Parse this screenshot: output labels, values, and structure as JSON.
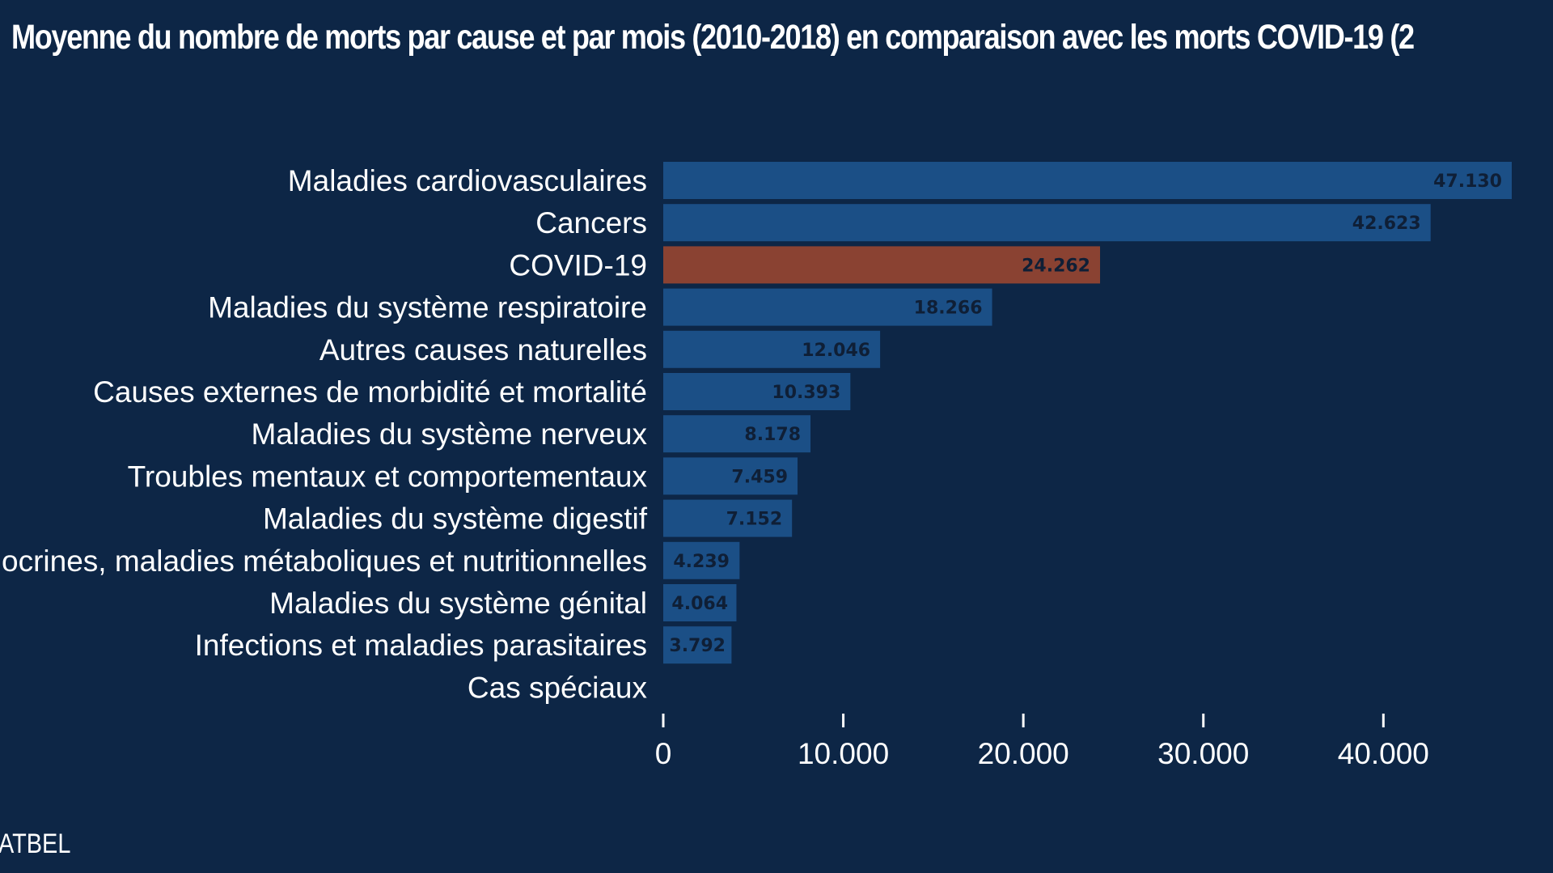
{
  "chart_data": {
    "type": "bar",
    "orientation": "horizontal",
    "title": "Moyenne du nombre de morts par cause et par mois (2010-2018) en comparaison avec les morts COVID-19 (2",
    "source": "ATBEL",
    "categories": [
      "Maladies cardiovasculaires",
      "Cancers",
      "COVID-19",
      "Maladies du système respiratoire",
      "Autres causes naturelles",
      "Causes externes de morbidité et mortalité",
      "Maladies du système nerveux",
      "Troubles mentaux et comportementaux",
      "Maladies du système digestif",
      "Endocrines, maladies métaboliques et nutritionnelles",
      "Maladies du système génital",
      "Infections et maladies parasitaires",
      "Cas spéciaux"
    ],
    "values": [
      47130,
      42623,
      24262,
      18266,
      12046,
      10393,
      8178,
      7459,
      7152,
      4239,
      4064,
      3792,
      null
    ],
    "value_labels": [
      "47.130",
      "42.623",
      "24.262",
      "18.266",
      "12.046",
      "10.393",
      "8.178",
      "7.459",
      "7.152",
      "4.239",
      "4.064",
      "3.792",
      ""
    ],
    "highlight_category": "COVID-19",
    "xlim": [
      0,
      47130
    ],
    "xticks": [
      0,
      10000,
      20000,
      30000,
      40000
    ],
    "xtick_labels": [
      "0",
      "10.000",
      "20.000",
      "30.000",
      "40.000"
    ],
    "xlabel": "",
    "ylabel": "",
    "grid": false,
    "colors": {
      "background": "#0d2646",
      "bar": "#1b4f86",
      "highlight": "#8a4232",
      "text": "#ffffff",
      "value_text": "#0f1f36"
    }
  }
}
